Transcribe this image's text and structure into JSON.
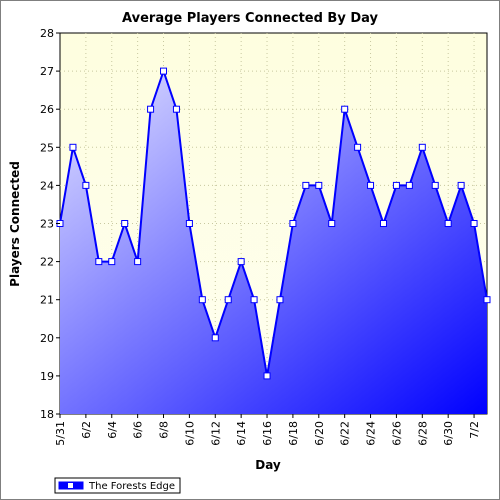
{
  "chart_data": {
    "type": "area",
    "title": "Average Players Connected By Day",
    "xlabel": "Day",
    "ylabel": "Players Connected",
    "ylim": [
      18,
      28
    ],
    "yticks": [
      "18",
      "19",
      "20",
      "21",
      "22",
      "23",
      "24",
      "25",
      "26",
      "27",
      "28"
    ],
    "grid": true,
    "legend_position": "bottom-left",
    "x": [
      "5/31",
      "6/1",
      "6/2",
      "6/3",
      "6/4",
      "6/5",
      "6/6",
      "6/7",
      "6/8",
      "6/9",
      "6/10",
      "6/11",
      "6/12",
      "6/13",
      "6/14",
      "6/15",
      "6/16",
      "6/17",
      "6/18",
      "6/19",
      "6/20",
      "6/21",
      "6/22",
      "6/23",
      "6/24",
      "6/25",
      "6/26",
      "6/27",
      "6/28",
      "6/29",
      "6/30",
      "7/1",
      "7/2",
      "7/3"
    ],
    "x_tick_labels": [
      "5/31",
      "6/2",
      "6/4",
      "6/6",
      "6/8",
      "6/10",
      "6/12",
      "6/14",
      "6/16",
      "6/18",
      "6/20",
      "6/22",
      "6/24",
      "6/26",
      "6/28",
      "6/30",
      "7/2"
    ],
    "series": [
      {
        "name": "The Forests Edge",
        "color": "#0000ff",
        "values": [
          23,
          25,
          24,
          22,
          22,
          23,
          22,
          26,
          27,
          26,
          23,
          21,
          20,
          21,
          22,
          21,
          19,
          21,
          23,
          24,
          24,
          23,
          26,
          25,
          24,
          23,
          24,
          24,
          25,
          24,
          23,
          24,
          23,
          21
        ]
      }
    ],
    "colors": {
      "plot_bg_top": "#fefedf",
      "plot_bg_bottom": "#fffff0",
      "area_light": "#e4e4ff",
      "area_dark": "#0000ff",
      "line": "#0000ff",
      "grid": "#c8c8a0"
    }
  }
}
